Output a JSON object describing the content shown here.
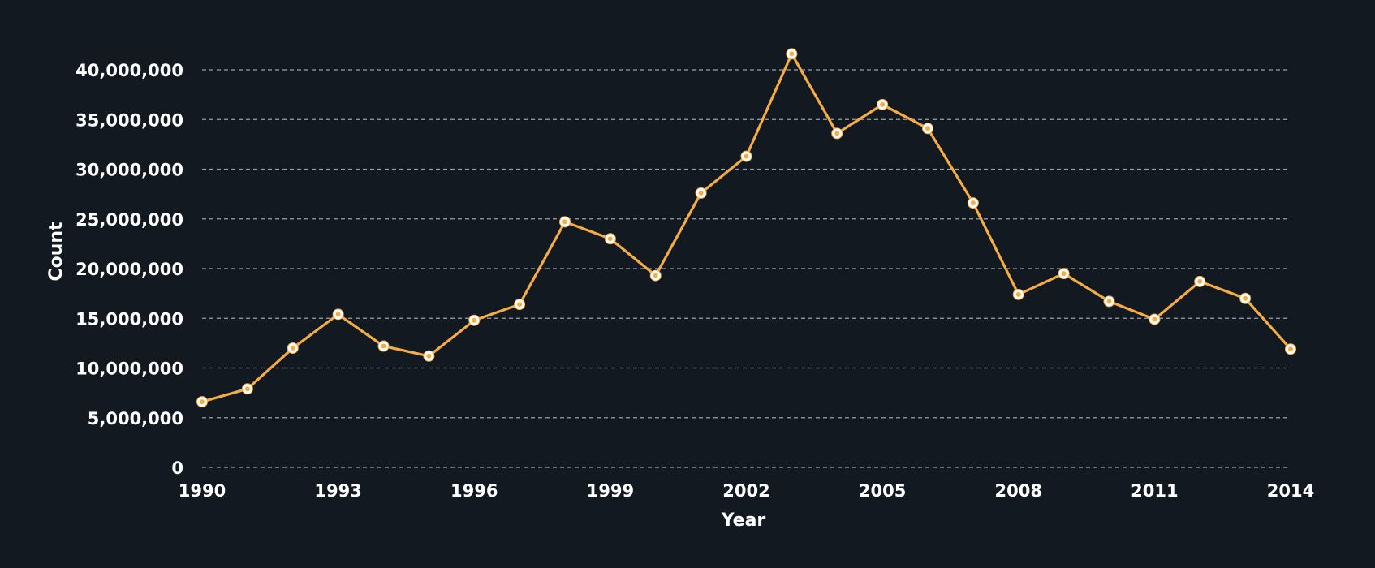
{
  "chart_data": {
    "type": "line",
    "title": "",
    "xlabel": "Year",
    "ylabel": "Count",
    "x": [
      1990,
      1991,
      1992,
      1993,
      1994,
      1995,
      1996,
      1997,
      1998,
      1999,
      2000,
      2001,
      2002,
      2003,
      2004,
      2005,
      2006,
      2007,
      2008,
      2009,
      2010,
      2011,
      2012,
      2013,
      2014
    ],
    "series": [
      {
        "values": [
          6600000,
          7900000,
          12000000,
          15400000,
          12200000,
          11200000,
          14800000,
          16400000,
          24700000,
          23000000,
          19300000,
          27600000,
          31300000,
          41600000,
          33600000,
          36500000,
          34100000,
          26600000,
          17400000,
          19500000,
          16700000,
          14900000,
          18700000,
          17000000,
          11900000
        ]
      }
    ],
    "xlim": [
      1990,
      2014
    ],
    "ylim": [
      0,
      40000000
    ],
    "x_ticks": [
      "1990",
      "1993",
      "1996",
      "1999",
      "2002",
      "2005",
      "2008",
      "2011",
      "2014"
    ],
    "y_ticks": [
      "0",
      "5,000,000",
      "10,000,000",
      "15,000,000",
      "20,000,000",
      "25,000,000",
      "30,000,000",
      "35,000,000",
      "40,000,000"
    ],
    "grid": true,
    "legend": "none",
    "colors": {
      "background": "#121920",
      "line": "#f5ac45",
      "marker_fill": "#ffffff",
      "marker_center": "#f5ac45",
      "grid": "#9aa1a8",
      "text": "#ffffff"
    }
  }
}
